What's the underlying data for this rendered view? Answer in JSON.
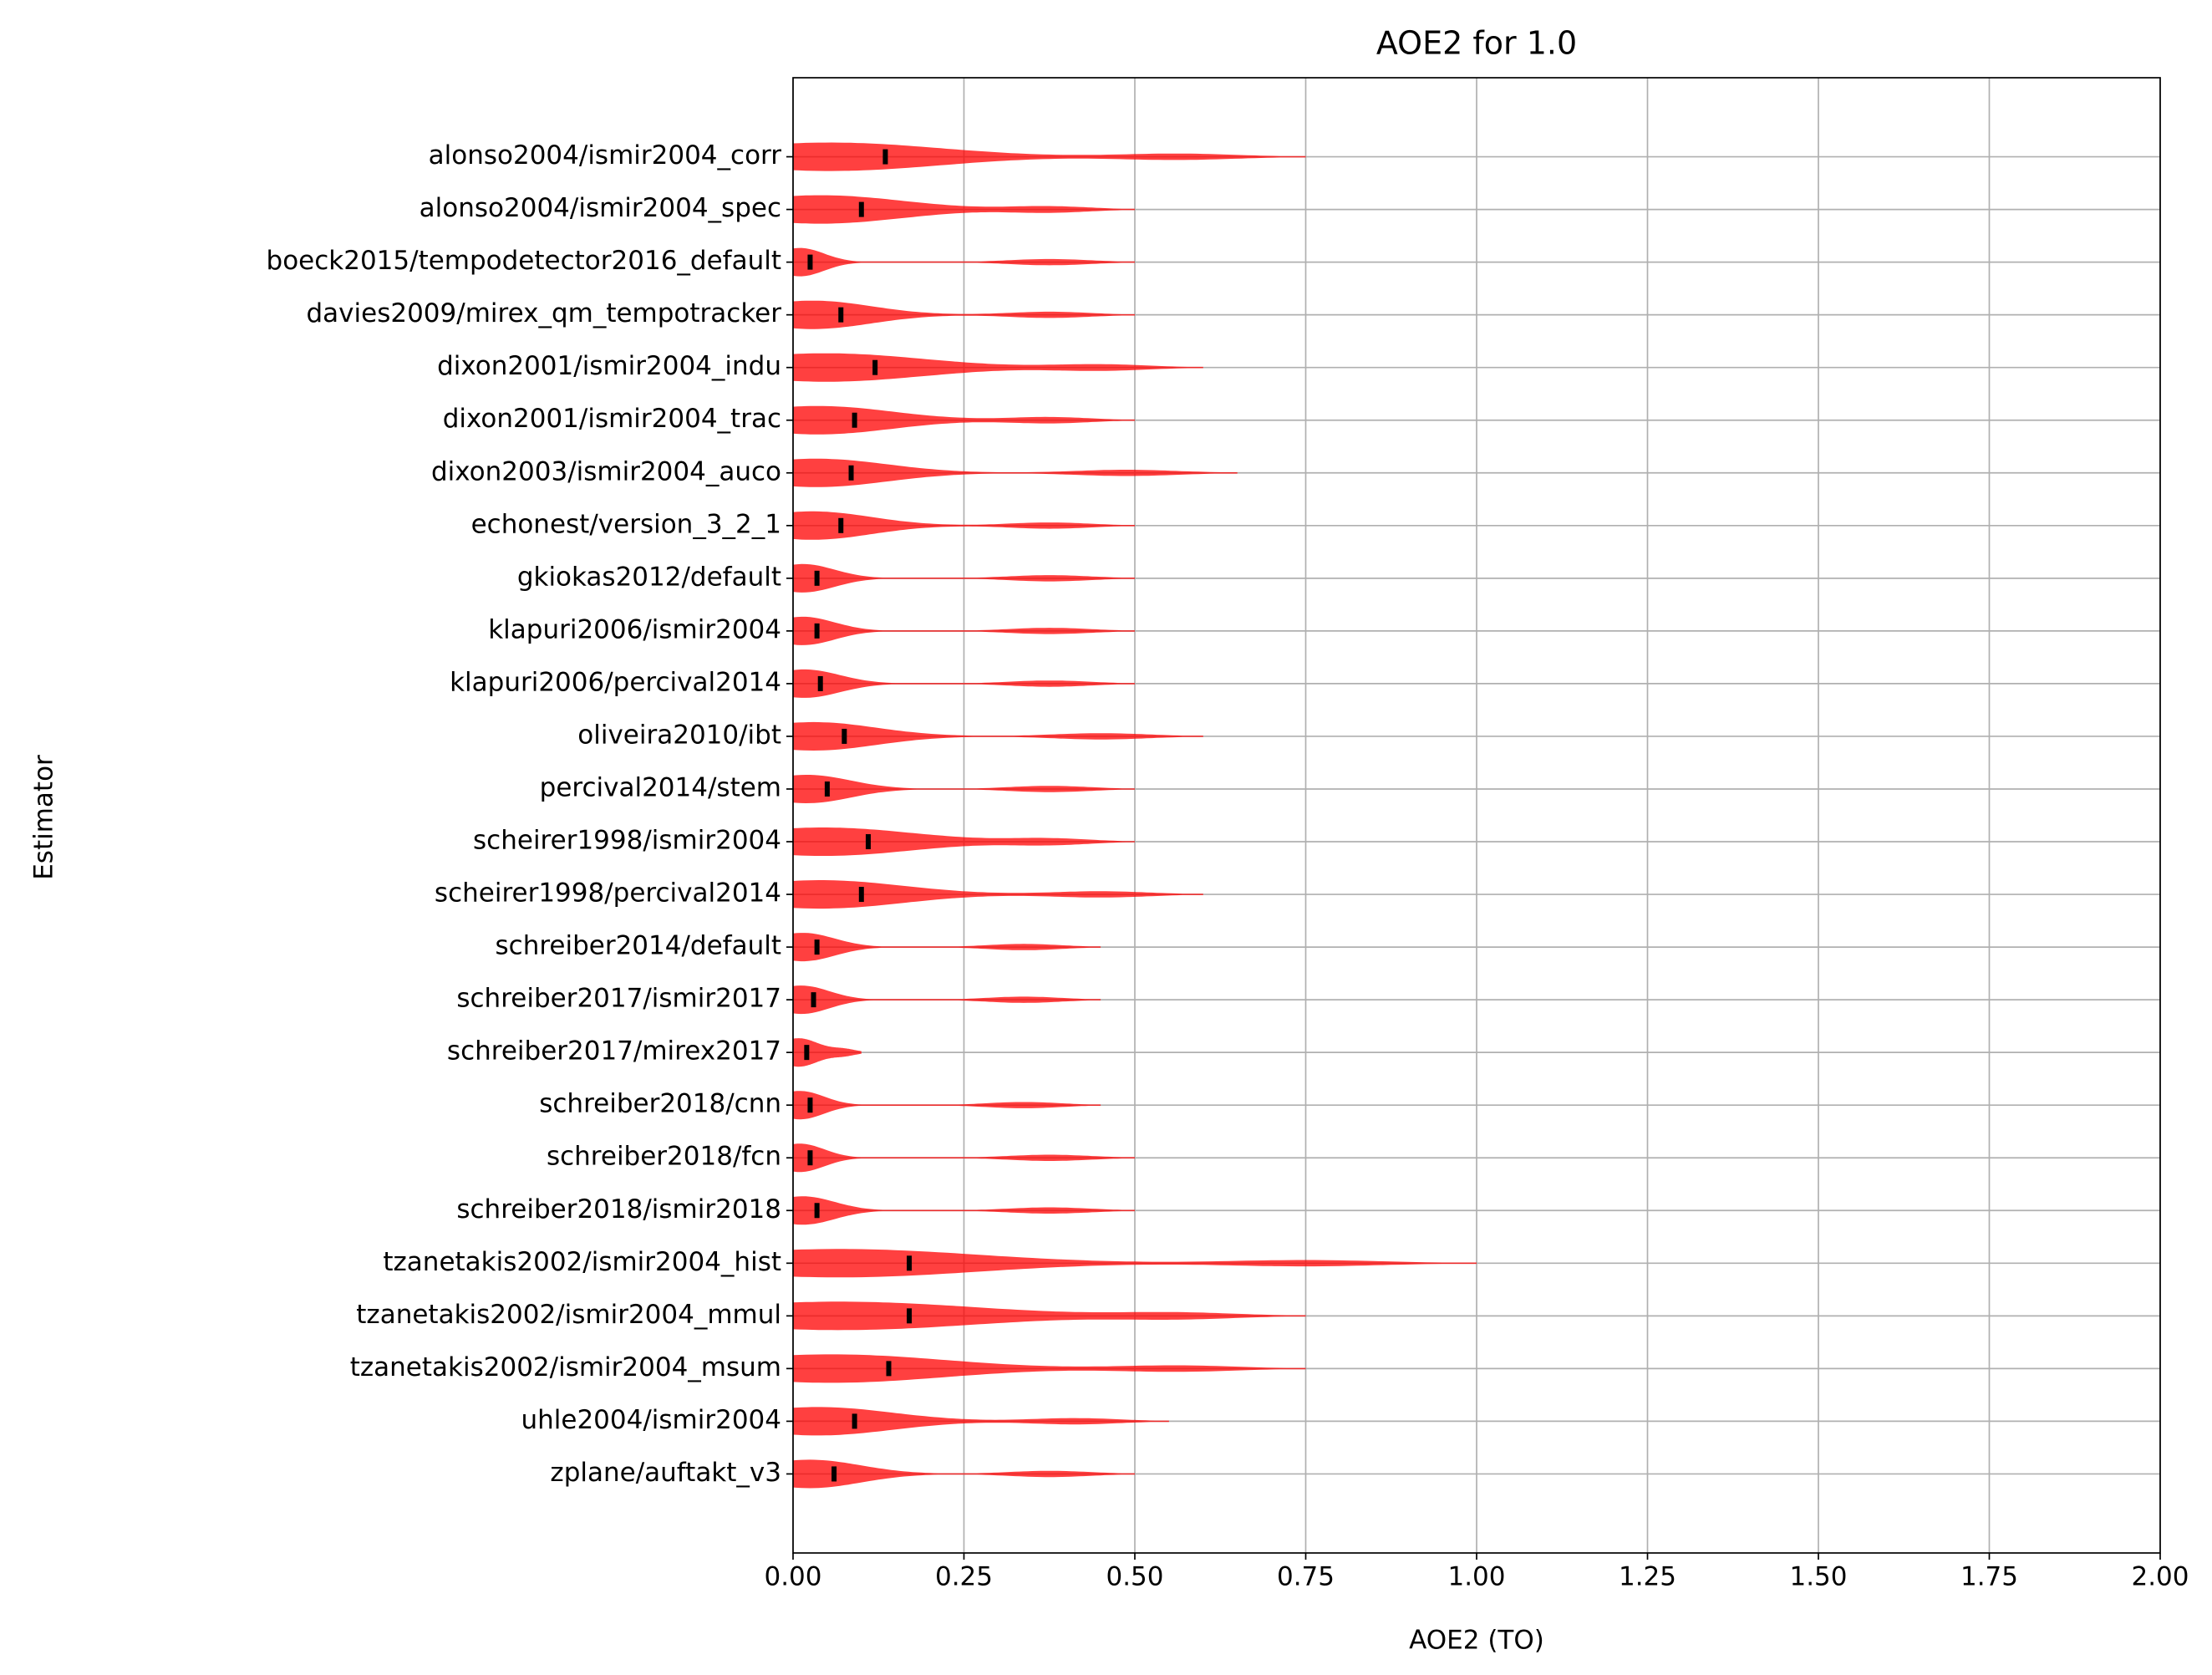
{
  "chart_data": {
    "type": "violin",
    "title": "AOE2 for 1.0",
    "x_label": "AOE2 (TO)",
    "y_label": "Estimator",
    "categories": [
      "alonso2004/ismir2004_corr",
      "alonso2004/ismir2004_spec",
      "boeck2015/tempodetector2016_default",
      "davies2009/mirex_qm_tempotracker",
      "dixon2001/ismir2004_indu",
      "dixon2001/ismir2004_trac",
      "dixon2003/ismir2004_auco",
      "echonest/version_3_2_1",
      "gkiokas2012/default",
      "klapuri2006/ismir2004",
      "klapuri2006/percival2014",
      "oliveira2010/ibt",
      "percival2014/stem",
      "scheirer1998/ismir2004",
      "scheirer1998/percival2014",
      "schreiber2014/default",
      "schreiber2017/ismir2017",
      "schreiber2017/mirex2017",
      "schreiber2018/cnn",
      "schreiber2018/fcn",
      "schreiber2018/ismir2018",
      "tzanetakis2002/ismir2004_hist",
      "tzanetakis2002/ismir2004_mmul",
      "tzanetakis2002/ismir2004_msum",
      "uhle2004/ismir2004",
      "zplane/auftakt_v3"
    ],
    "series": [
      {
        "color": "#ff0000",
        "mean_color": "#000000",
        "values": [
          0.135,
          0.1,
          0.025,
          0.07,
          0.12,
          0.09,
          0.085,
          0.07,
          0.035,
          0.035,
          0.04,
          0.075,
          0.05,
          0.11,
          0.1,
          0.035,
          0.03,
          0.02,
          0.025,
          0.025,
          0.035,
          0.17,
          0.17,
          0.14,
          0.09,
          0.06
        ],
        "max": [
          0.75,
          0.5,
          0.5,
          0.5,
          0.6,
          0.5,
          0.65,
          0.5,
          0.5,
          0.5,
          0.5,
          0.6,
          0.5,
          0.5,
          0.6,
          0.45,
          0.45,
          0.1,
          0.45,
          0.5,
          0.5,
          1.0,
          0.75,
          0.75,
          0.55,
          0.5
        ]
      }
    ],
    "xlim": [
      0,
      2
    ],
    "xticks": [
      {
        "value": 0,
        "label": "0.00"
      },
      {
        "value": 0.25,
        "label": "0.25"
      },
      {
        "value": 0.5,
        "label": "0.50"
      },
      {
        "value": 0.75,
        "label": "0.75"
      },
      {
        "value": 1,
        "label": "1.00"
      },
      {
        "value": 1.25,
        "label": "1.25"
      },
      {
        "value": 1.5,
        "label": "1.50"
      },
      {
        "value": 1.75,
        "label": "1.75"
      },
      {
        "value": 2,
        "label": "2.00"
      }
    ],
    "grid": true
  }
}
